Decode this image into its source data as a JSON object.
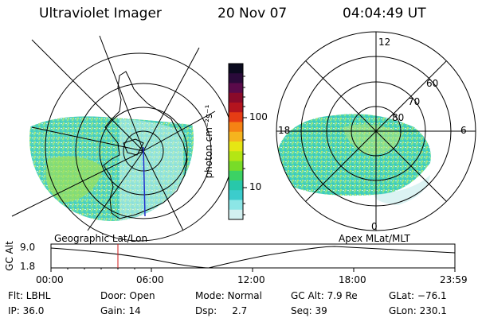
{
  "header": {
    "title": "Ultraviolet Imager",
    "date": "20 Nov 07",
    "time": "04:04:49 UT"
  },
  "colorbar": {
    "unit_label": "photon cm⁻²s⁻¹",
    "ticks": [
      "100",
      "10"
    ],
    "colors": [
      "#0a0a1e",
      "#2a0a3a",
      "#5a0a4a",
      "#8a0a2a",
      "#b4141e",
      "#e63c14",
      "#f58214",
      "#f5b41e",
      "#e6e614",
      "#b4e614",
      "#78dc28",
      "#3cd264",
      "#28c8aa",
      "#3ccccc",
      "#8ce6e6",
      "#d2f0f0"
    ]
  },
  "panels": {
    "geo_label": "Geographic Lat/Lon",
    "mag_label": "Apex MLat/MLT",
    "mlt_labels": [
      "12",
      "18",
      "6",
      "0"
    ],
    "mlat_labels": [
      "60",
      "70",
      "80"
    ]
  },
  "altitude_plot": {
    "ylabel": "GC Alt",
    "yticks": [
      "9.0",
      "1.8"
    ],
    "xticks": [
      "00:00",
      "06:00",
      "12:00",
      "18:00",
      "23:59"
    ]
  },
  "info": {
    "flt": "Flt: LBHL",
    "ip": "IP: 36.0",
    "door": "Door: Open",
    "gain": "Gain: 14",
    "mode": "Mode: Normal",
    "dsp": "Dsp:     2.7",
    "gcalt": "GC Alt: 7.9 Re",
    "seq": "Seq: 39",
    "glat": "GLat: −76.1",
    "glon": "GLon: 230.1"
  }
}
